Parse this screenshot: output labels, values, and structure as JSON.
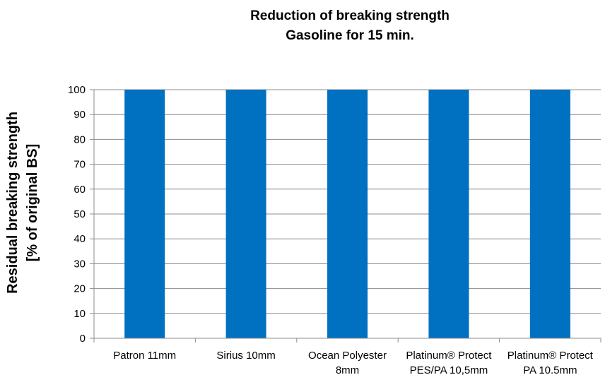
{
  "chart_data": {
    "type": "bar",
    "title": [
      "Reduction of breaking strength",
      "Gasoline for 15 min."
    ],
    "ylabel": [
      "Residual breaking strength",
      "[% of original BS]"
    ],
    "xlabel": "",
    "ylim": [
      0,
      100
    ],
    "yticks": [
      0,
      10,
      20,
      30,
      40,
      50,
      60,
      70,
      80,
      90,
      100
    ],
    "grid": true,
    "legend": "none",
    "categories": [
      [
        "Patron 11mm"
      ],
      [
        "Sirius 10mm"
      ],
      [
        "Ocean Polyester",
        "8mm"
      ],
      [
        "Platinum® Protect",
        "PES/PA 10,5mm"
      ],
      [
        "Platinum® Protect",
        "PA 10.5mm"
      ]
    ],
    "series": [
      {
        "values": [
          100,
          100,
          100,
          100,
          100
        ],
        "color": "#0070C0"
      }
    ]
  }
}
